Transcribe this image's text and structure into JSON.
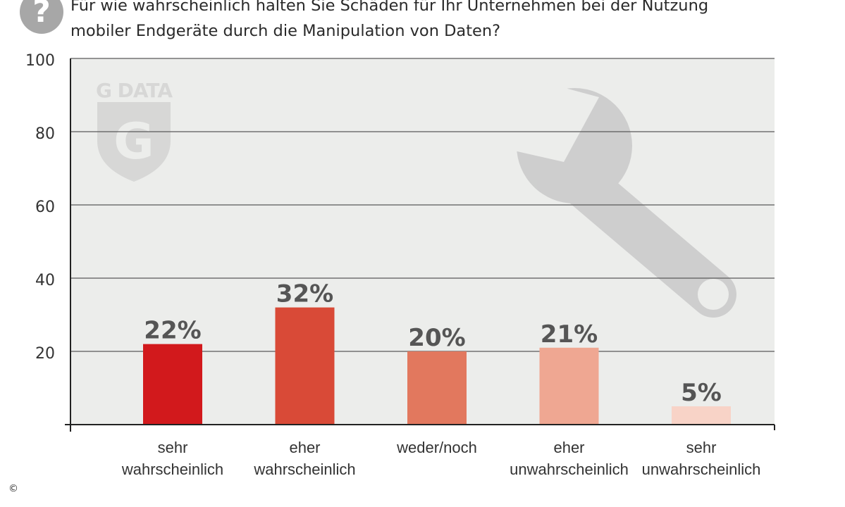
{
  "header": {
    "title_line1": "Für wie wahrscheinlich halten Sie Schäden für Ihr Unternehmen bei der Nutzung",
    "title_line2": "mobiler Endgeräte durch die Manipulation von Daten?",
    "icon": "question-circle-icon"
  },
  "watermark": {
    "logo_text": "G DATA",
    "logo_letter": "G",
    "icon": "wrench-icon"
  },
  "footer": {
    "copyright_symbol": "©"
  },
  "colors": {
    "plot_background": "#ecedeb",
    "gridline": "#5a5a5a",
    "axis": "#222222",
    "watermark": "#c8c8c8",
    "value_label": "#555555"
  },
  "chart_data": {
    "type": "bar",
    "categories": [
      [
        "sehr",
        "wahrscheinlich"
      ],
      [
        "eher",
        "wahrscheinlich"
      ],
      [
        "weder/noch"
      ],
      [
        "eher",
        "unwahrscheinlich"
      ],
      [
        "sehr",
        "unwahrscheinlich"
      ]
    ],
    "values": [
      22,
      32,
      20,
      21,
      5
    ],
    "value_labels": [
      "22%",
      "32%",
      "20%",
      "21%",
      "5%"
    ],
    "bar_colors": [
      "#d2191c",
      "#d94a37",
      "#e2785e",
      "#efa792",
      "#f8d3c7"
    ],
    "ylim": [
      0,
      100
    ],
    "yticks": [
      20,
      40,
      60,
      80,
      100
    ],
    "ytick_labels": [
      "20",
      "40",
      "60",
      "80",
      "100"
    ],
    "grid": true,
    "legend": "none"
  }
}
